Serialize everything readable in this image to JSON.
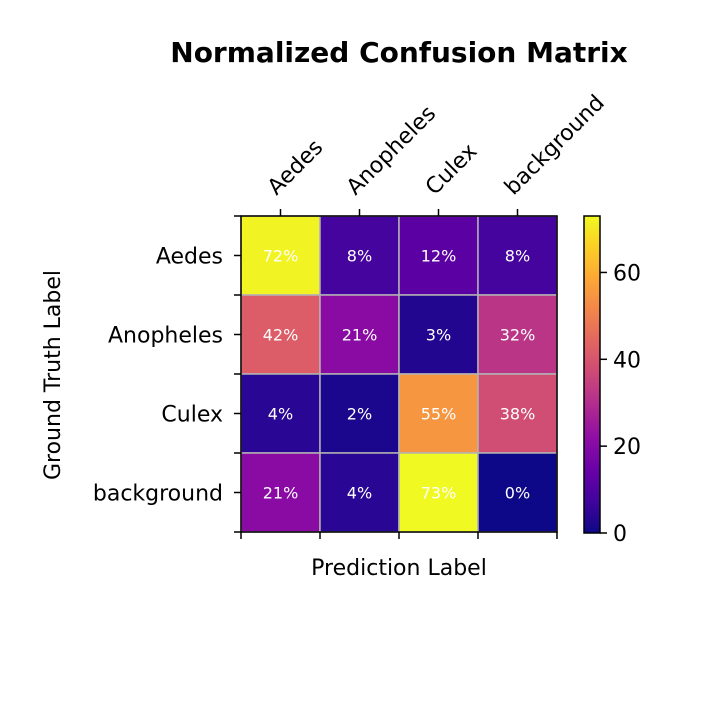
{
  "chart_data": {
    "type": "heatmap",
    "title": "Normalized Confusion Matrix",
    "xlabel": "Prediction Label",
    "ylabel": "Ground Truth Label",
    "x_categories": [
      "Aedes",
      "Anopheles",
      "Culex",
      "background"
    ],
    "y_categories": [
      "Aedes",
      "Anopheles",
      "Culex",
      "background"
    ],
    "values": [
      [
        72,
        8,
        12,
        8
      ],
      [
        42,
        21,
        3,
        32
      ],
      [
        4,
        2,
        55,
        38
      ],
      [
        21,
        4,
        73,
        0
      ]
    ],
    "cell_labels": [
      [
        "72%",
        "8%",
        "12%",
        "8%"
      ],
      [
        "42%",
        "21%",
        "3%",
        "32%"
      ],
      [
        "4%",
        "2%",
        "55%",
        "38%"
      ],
      [
        "21%",
        "4%",
        "73%",
        "0%"
      ]
    ],
    "colormap": "plasma",
    "vmin": 0,
    "vmax": 73,
    "colorbar": {
      "ticks": [
        0,
        20,
        40,
        60
      ],
      "tick_labels": [
        "0",
        "20",
        "40",
        "60"
      ]
    },
    "colors": {
      "cell_border": "#b3b3b3",
      "frame": "#000000",
      "cell_text": "#ffffff"
    }
  }
}
